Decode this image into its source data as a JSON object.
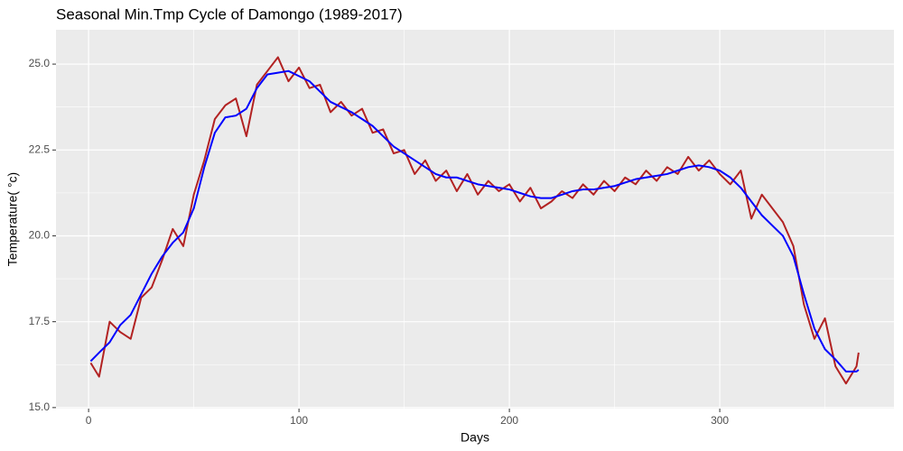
{
  "chart_data": {
    "type": "line",
    "title": "Seasonal Min.Tmp Cycle of Damongo (1989-2017)",
    "x_label": "Days",
    "y_label": "Temperature( °c)",
    "x": [
      1,
      5,
      10,
      15,
      20,
      25,
      30,
      35,
      40,
      45,
      50,
      55,
      60,
      65,
      70,
      75,
      80,
      85,
      90,
      95,
      100,
      105,
      110,
      115,
      120,
      125,
      130,
      135,
      140,
      145,
      150,
      155,
      160,
      165,
      170,
      175,
      180,
      185,
      190,
      195,
      200,
      205,
      210,
      215,
      220,
      225,
      230,
      235,
      240,
      245,
      250,
      255,
      260,
      265,
      270,
      275,
      280,
      285,
      290,
      295,
      300,
      305,
      310,
      315,
      320,
      325,
      330,
      335,
      340,
      345,
      350,
      355,
      360,
      365,
      366
    ],
    "series": [
      {
        "color": "#b22222",
        "values": [
          16.3,
          15.9,
          17.5,
          17.2,
          17.0,
          18.2,
          18.5,
          19.3,
          20.2,
          19.7,
          21.2,
          22.2,
          23.4,
          23.8,
          24.0,
          22.9,
          24.4,
          24.8,
          25.2,
          24.5,
          24.9,
          24.3,
          24.4,
          23.6,
          23.9,
          23.5,
          23.7,
          23.0,
          23.1,
          22.4,
          22.5,
          21.8,
          22.2,
          21.6,
          21.9,
          21.3,
          21.8,
          21.2,
          21.6,
          21.3,
          21.5,
          21.0,
          21.4,
          20.8,
          21.0,
          21.3,
          21.1,
          21.5,
          21.2,
          21.6,
          21.3,
          21.7,
          21.5,
          21.9,
          21.6,
          22.0,
          21.8,
          22.3,
          21.9,
          22.2,
          21.8,
          21.5,
          21.9,
          20.5,
          21.2,
          20.8,
          20.4,
          19.7,
          18.0,
          17.0,
          17.6,
          16.2,
          15.7,
          16.2,
          16.6
        ]
      },
      {
        "color": "#0000ff",
        "values": [
          16.35,
          16.6,
          16.9,
          17.4,
          17.7,
          18.3,
          18.9,
          19.4,
          19.8,
          20.1,
          20.8,
          22.0,
          23.0,
          23.45,
          23.5,
          23.7,
          24.3,
          24.7,
          24.75,
          24.8,
          24.65,
          24.5,
          24.2,
          23.9,
          23.75,
          23.6,
          23.4,
          23.2,
          22.9,
          22.6,
          22.4,
          22.2,
          22.0,
          21.8,
          21.7,
          21.7,
          21.6,
          21.5,
          21.45,
          21.4,
          21.35,
          21.25,
          21.15,
          21.1,
          21.1,
          21.2,
          21.3,
          21.35,
          21.35,
          21.4,
          21.45,
          21.55,
          21.65,
          21.7,
          21.75,
          21.8,
          21.9,
          22.0,
          22.05,
          22.0,
          21.9,
          21.7,
          21.4,
          21.0,
          20.6,
          20.3,
          20.0,
          19.4,
          18.3,
          17.3,
          16.7,
          16.4,
          16.05,
          16.05,
          16.1
        ]
      }
    ],
    "xlim": [
      -15.5,
      382.8
    ],
    "xticks": [
      0,
      100,
      200,
      300
    ],
    "ylim": [
      14.97,
      26.0
    ],
    "yticks": [
      {
        "value": 15,
        "label": "15.0"
      },
      17.5,
      {
        "value": 20,
        "label": "20.0"
      },
      22.5,
      {
        "value": 25,
        "label": "25.0"
      }
    ],
    "grid": true
  }
}
